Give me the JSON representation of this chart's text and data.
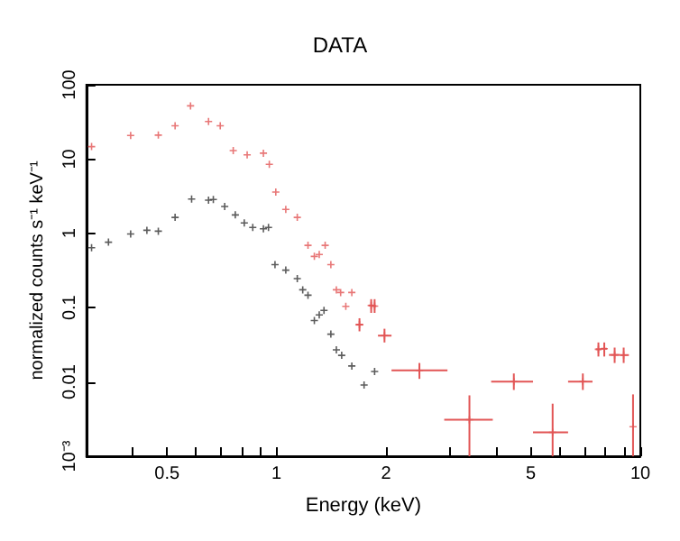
{
  "chart_data": {
    "type": "scatter",
    "title": "DATA",
    "xlabel": "Energy (keV)",
    "ylabel": "normalized counts s⁻¹ keV⁻¹",
    "log": "xy",
    "grid": false,
    "marker": "cross",
    "xlim": [
      0.3,
      10
    ],
    "ylim": [
      0.001,
      100
    ],
    "xticks": [
      {
        "value": 0.3,
        "label": null
      },
      {
        "value": 0.4,
        "label": null
      },
      0.5,
      {
        "value": 0.6,
        "label": null
      },
      {
        "value": 0.7,
        "label": null
      },
      {
        "value": 0.8,
        "label": null
      },
      {
        "value": 0.9,
        "label": null
      },
      1,
      2,
      {
        "value": 3,
        "label": null
      },
      {
        "value": 4,
        "label": null
      },
      5,
      {
        "value": 6,
        "label": null
      },
      {
        "value": 7,
        "label": null
      },
      {
        "value": 8,
        "label": null
      },
      {
        "value": 9,
        "label": null
      },
      10
    ],
    "yticks": [
      {
        "value": 0.001,
        "label": "10⁻³"
      },
      0.01,
      0.1,
      1,
      10,
      100
    ],
    "series": [
      {
        "color": "#e25555",
        "x": [
          0.31,
          0.397,
          0.473,
          0.526,
          0.58,
          0.65,
          0.7,
          0.76,
          0.83,
          0.92,
          0.955,
          0.995,
          1.06,
          1.14,
          1.22,
          1.27,
          1.31,
          1.36,
          1.41,
          1.46,
          1.5,
          1.55,
          1.61,
          1.69,
          1.82,
          1.86,
          1.98,
          2.47,
          3.39,
          4.49,
          5.74,
          6.95,
          7.67,
          7.96,
          8.5,
          9.0,
          9.55
        ],
        "values": [
          14.7,
          20.8,
          21,
          28,
          52,
          32,
          28,
          13,
          11.4,
          12,
          8.5,
          3.6,
          2.1,
          1.64,
          0.69,
          0.49,
          0.52,
          0.69,
          0.38,
          0.174,
          0.16,
          0.104,
          0.16,
          0.059,
          0.107,
          0.105,
          0.042,
          0.0143,
          0.0031,
          0.0101,
          0.0021,
          0.0101,
          0.0275,
          0.028,
          0.0231,
          0.023,
          0.0025
        ],
        "xerrors": [
          null,
          null,
          null,
          null,
          null,
          null,
          null,
          null,
          null,
          null,
          null,
          null,
          null,
          null,
          null,
          null,
          null,
          null,
          null,
          null,
          null,
          null,
          null,
          [
            1.65,
            1.73
          ],
          [
            1.79,
            1.85
          ],
          [
            1.84,
            1.88
          ],
          [
            1.9,
            2.07
          ],
          [
            2.07,
            2.95
          ],
          [
            2.89,
            3.93
          ],
          [
            3.89,
            5.07
          ],
          [
            5.07,
            6.33
          ],
          [
            6.33,
            7.39
          ],
          [
            7.55,
            7.8
          ],
          [
            7.8,
            8.1
          ],
          [
            8.2,
            8.8
          ],
          [
            8.8,
            9.3
          ],
          null
        ],
        "errors": [
          null,
          null,
          null,
          null,
          null,
          null,
          null,
          null,
          null,
          null,
          null,
          null,
          null,
          null,
          null,
          null,
          null,
          null,
          null,
          null,
          null,
          null,
          null,
          [
            0.048,
            0.072
          ],
          [
            0.085,
            0.13
          ],
          [
            0.085,
            0.13
          ],
          [
            0.034,
            0.052
          ],
          [
            0.011,
            0.018
          ],
          [
            0.001,
            0.0066
          ],
          [
            0.0078,
            0.013
          ],
          [
            0.001,
            0.0051
          ],
          [
            0.0078,
            0.013
          ],
          [
            0.022,
            0.034
          ],
          [
            0.022,
            0.034
          ],
          [
            0.018,
            0.029
          ],
          [
            0.018,
            0.029
          ],
          [
            0.001,
            0.0068
          ]
        ]
      },
      {
        "color": "#333333",
        "x": [
          0.31,
          0.345,
          0.397,
          0.44,
          0.473,
          0.526,
          0.584,
          0.65,
          0.67,
          0.72,
          0.77,
          0.815,
          0.86,
          0.92,
          0.95,
          0.99,
          1.06,
          1.14,
          1.18,
          1.22,
          1.27,
          1.31,
          1.35,
          1.41,
          1.46,
          1.51,
          1.61,
          1.74,
          1.86
        ],
        "values": [
          0.64,
          0.76,
          0.98,
          1.1,
          1.07,
          1.64,
          2.9,
          2.8,
          2.85,
          2.3,
          1.77,
          1.38,
          1.2,
          1.15,
          1.2,
          0.38,
          0.32,
          0.246,
          0.174,
          0.147,
          0.067,
          0.08,
          0.092,
          0.044,
          0.027,
          0.0228,
          0.0164,
          0.0091,
          0.0138
        ]
      }
    ]
  }
}
